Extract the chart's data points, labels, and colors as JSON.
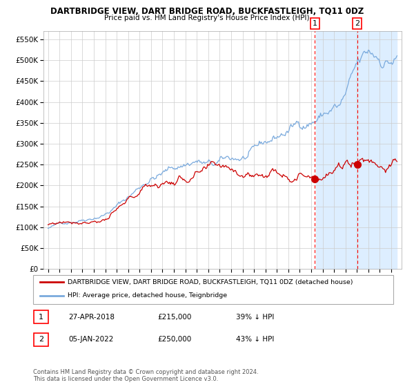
{
  "title": "DARTBRIDGE VIEW, DART BRIDGE ROAD, BUCKFASTLEIGH, TQ11 0DZ",
  "subtitle": "Price paid vs. HM Land Registry's House Price Index (HPI)",
  "legend_red": "DARTBRIDGE VIEW, DART BRIDGE ROAD, BUCKFASTLEIGH, TQ11 0DZ (detached house)",
  "legend_blue": "HPI: Average price, detached house, Teignbridge",
  "annotation1_date": "27-APR-2018",
  "annotation1_price": "£215,000",
  "annotation1_pct": "39% ↓ HPI",
  "annotation1_year": 2018.32,
  "annotation1_value": 215000,
  "annotation2_date": "05-JAN-2022",
  "annotation2_price": "£250,000",
  "annotation2_pct": "43% ↓ HPI",
  "annotation2_year": 2022.02,
  "annotation2_value": 250000,
  "footer": "Contains HM Land Registry data © Crown copyright and database right 2024.\nThis data is licensed under the Open Government Licence v3.0.",
  "ylim": [
    0,
    570000
  ],
  "yticks": [
    0,
    50000,
    100000,
    150000,
    200000,
    250000,
    300000,
    350000,
    400000,
    450000,
    500000,
    550000
  ],
  "background_color": "#ffffff",
  "plot_bg_color": "#ffffff",
  "shaded_region_color": "#ddeeff",
  "red_line_color": "#cc0000",
  "blue_line_color": "#7aaadd",
  "grid_color": "#cccccc"
}
